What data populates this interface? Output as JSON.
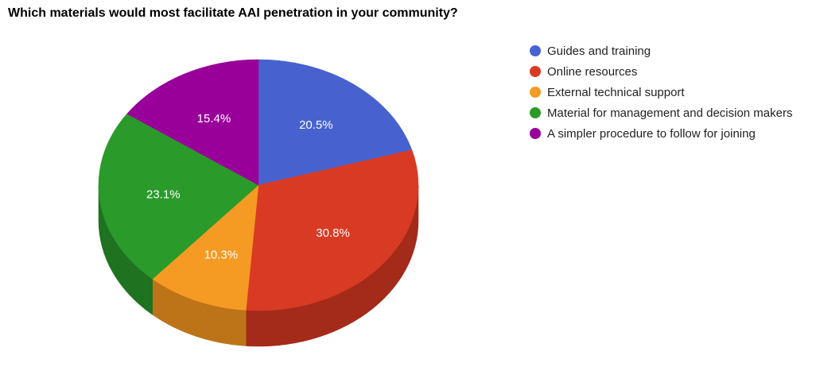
{
  "title": "Which materials would most facilitate AAI penetration in your community?",
  "chart_data": {
    "type": "pie",
    "title": "Which materials would most facilitate AAI penetration in your community?",
    "style": "3d",
    "legend_position": "right",
    "categories": [
      "Guides and training",
      "Online resources",
      "External technical support",
      "Material for management and decision makers",
      "A simpler procedure to follow for joining"
    ],
    "values": [
      20.5,
      30.8,
      10.3,
      23.1,
      15.4
    ],
    "labels": [
      "20.5%",
      "30.8%",
      "10.3%",
      "23.1%",
      "15.4%"
    ],
    "colors": [
      "#4762cf",
      "#d93a24",
      "#f59a23",
      "#2a9a2a",
      "#990099"
    ],
    "side_colors": [
      "#3a50a8",
      "#a42a19",
      "#bd7418",
      "#1f721f",
      "#700070"
    ]
  }
}
